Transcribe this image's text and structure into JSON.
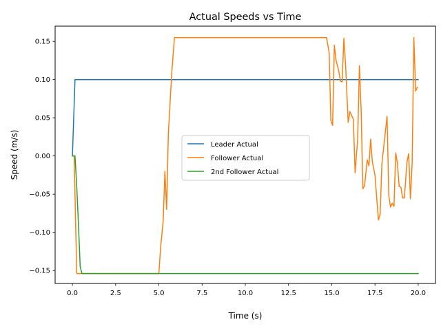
{
  "chart_data": {
    "type": "line",
    "title": "Actual Speeds vs Time",
    "xlabel": "Time (s)",
    "ylabel": "Speed (m/s)",
    "xlim": [
      -1.0,
      21.0
    ],
    "ylim": [
      -0.167,
      0.17
    ],
    "x_ticks": [
      0.0,
      2.5,
      5.0,
      7.5,
      10.0,
      12.5,
      15.0,
      17.5,
      20.0
    ],
    "x_tick_labels": [
      "0.0",
      "2.5",
      "5.0",
      "7.5",
      "10.0",
      "12.5",
      "15.0",
      "17.5",
      "20.0"
    ],
    "y_ticks": [
      -0.15,
      -0.1,
      -0.05,
      0.0,
      0.05,
      0.1,
      0.15
    ],
    "y_tick_labels": [
      "−0.15",
      "−0.10",
      "−0.05",
      "0.00",
      "0.05",
      "0.10",
      "0.15"
    ],
    "grid": false,
    "legend_position": "center",
    "series": [
      {
        "name": "Leader Actual",
        "color": "#1f77b4",
        "points": [
          [
            0.0,
            0.0
          ],
          [
            0.15,
            0.1
          ],
          [
            20.0,
            0.1
          ]
        ]
      },
      {
        "name": "Follower Actual",
        "color": "#ff7f0e",
        "points": [
          [
            0.0,
            0.0
          ],
          [
            0.1,
            0.0
          ],
          [
            0.25,
            -0.154
          ],
          [
            5.0,
            -0.154
          ],
          [
            5.1,
            -0.12
          ],
          [
            5.25,
            -0.085
          ],
          [
            5.35,
            -0.02
          ],
          [
            5.45,
            -0.07
          ],
          [
            5.55,
            0.03
          ],
          [
            5.75,
            0.11
          ],
          [
            5.9,
            0.155
          ],
          [
            14.7,
            0.155
          ],
          [
            14.85,
            0.135
          ],
          [
            14.95,
            0.046
          ],
          [
            15.05,
            0.04
          ],
          [
            15.15,
            0.145
          ],
          [
            15.25,
            0.125
          ],
          [
            15.4,
            0.112
          ],
          [
            15.5,
            0.098
          ],
          [
            15.6,
            0.097
          ],
          [
            15.7,
            0.154
          ],
          [
            15.8,
            0.12
          ],
          [
            15.95,
            0.044
          ],
          [
            16.05,
            0.058
          ],
          [
            16.15,
            0.053
          ],
          [
            16.25,
            0.048
          ],
          [
            16.35,
            -0.022
          ],
          [
            16.5,
            0.022
          ],
          [
            16.6,
            0.118
          ],
          [
            16.7,
            0.06
          ],
          [
            16.8,
            -0.043
          ],
          [
            16.9,
            -0.039
          ],
          [
            17.05,
            -0.005
          ],
          [
            17.15,
            -0.013
          ],
          [
            17.25,
            0.022
          ],
          [
            17.35,
            -0.008
          ],
          [
            17.5,
            -0.025
          ],
          [
            17.7,
            -0.084
          ],
          [
            17.8,
            -0.076
          ],
          [
            17.9,
            -0.01
          ],
          [
            18.2,
            0.052
          ],
          [
            18.3,
            -0.052
          ],
          [
            18.4,
            -0.067
          ],
          [
            18.5,
            -0.062
          ],
          [
            18.6,
            -0.066
          ],
          [
            18.7,
            0.004
          ],
          [
            18.8,
            -0.01
          ],
          [
            18.9,
            -0.04
          ],
          [
            19.0,
            -0.041
          ],
          [
            19.1,
            -0.055
          ],
          [
            19.2,
            -0.055
          ],
          [
            19.35,
            -0.008
          ],
          [
            19.45,
            0.003
          ],
          [
            19.55,
            -0.056
          ],
          [
            19.65,
            -0.01
          ],
          [
            19.75,
            0.155
          ],
          [
            19.85,
            0.085
          ],
          [
            19.95,
            0.09
          ]
        ]
      },
      {
        "name": "2nd Follower Actual",
        "color": "#2ca02c",
        "points": [
          [
            0.0,
            0.0
          ],
          [
            0.15,
            0.0
          ],
          [
            0.25,
            -0.04
          ],
          [
            0.35,
            -0.09
          ],
          [
            0.45,
            -0.145
          ],
          [
            0.55,
            -0.154
          ],
          [
            20.0,
            -0.154
          ]
        ]
      }
    ]
  }
}
